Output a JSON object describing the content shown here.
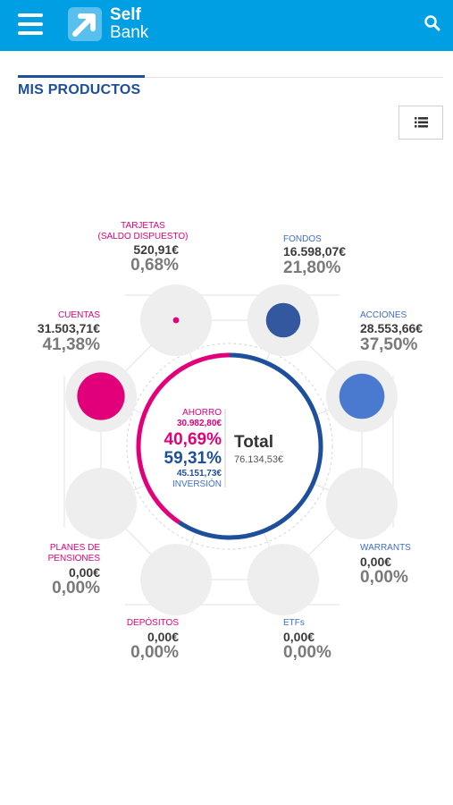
{
  "header": {
    "logo_self": "Self",
    "logo_bank": "Bank",
    "menu_icon": "hamburger-menu-icon",
    "search_icon": "search-icon",
    "bar_color": "#009ee3"
  },
  "section": {
    "title": "MIS PRODUCTOS",
    "view_toggle_icon": "list-icon"
  },
  "colors": {
    "ahorro": "#e2007a",
    "inversion": "#1e4f9c"
  },
  "center": {
    "ahorro_label": "AHORRO",
    "ahorro_amount": "30.982,80€",
    "ahorro_pct": "40,69%",
    "inversion_pct": "59,31%",
    "inversion_amount": "45.151,73€",
    "inversion_label": "INVERSIÓN",
    "total_label": "Total",
    "total_value": "76.134,53€",
    "ahorro_fraction": 0.4069
  },
  "products": {
    "tarjetas": {
      "label1": "TARJETAS",
      "label2": "(SALDO DISPUESTO)",
      "value": "520,91€",
      "pct": "0,68%",
      "share": 0.0068,
      "color": "#e2007a"
    },
    "fondos": {
      "label1": "FONDOS",
      "value": "16.598,07€",
      "pct": "21,80%",
      "share": 0.218,
      "color": "#34589f"
    },
    "acciones": {
      "label1": "ACCIONES",
      "value": "28.553,66€",
      "pct": "37,50%",
      "share": 0.375,
      "color": "#4a7ad0"
    },
    "warrants": {
      "label1": "WARRANTS",
      "value": "0,00€",
      "pct": "0,00%",
      "share": 0,
      "color": "#4a7ad0"
    },
    "etfs": {
      "label1": "ETFs",
      "value": "0,00€",
      "pct": "0,00%",
      "share": 0,
      "color": "#4a7ad0"
    },
    "depositos": {
      "label1": "DEPÓSITOS",
      "value": "0,00€",
      "pct": "0,00%",
      "share": 0,
      "color": "#e2007a"
    },
    "planes": {
      "label1": "PLANES DE",
      "label2": "PENSIONES",
      "value": "0,00€",
      "pct": "0,00%",
      "share": 0,
      "color": "#e2007a"
    },
    "cuentas": {
      "label1": "CUENTAS",
      "value": "31.503,71€",
      "pct": "41,38%",
      "share": 0.4138,
      "color": "#e2007a"
    }
  }
}
